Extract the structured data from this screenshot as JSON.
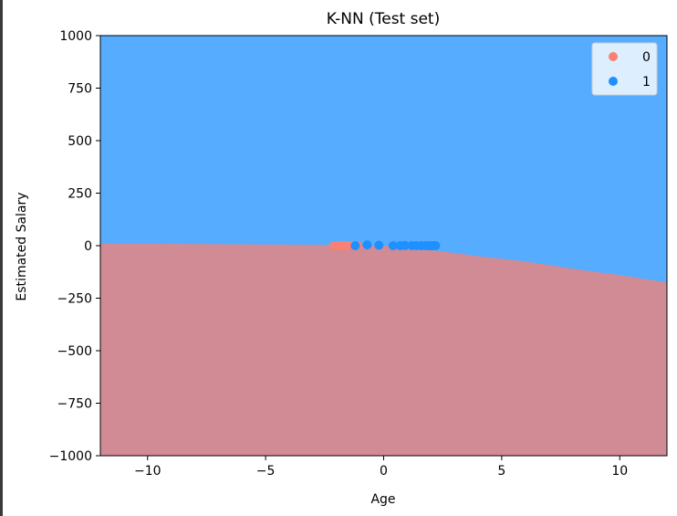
{
  "chart_data": {
    "type": "scatter",
    "title": "K-NN (Test set)",
    "xlabel": "Age",
    "ylabel": "Estimated Salary",
    "xlim": [
      -12,
      12
    ],
    "ylim": [
      -1000,
      1000
    ],
    "x_ticks": [
      -10,
      -5,
      0,
      5,
      10
    ],
    "x_tick_labels": [
      "−10",
      "−5",
      "0",
      "5",
      "10"
    ],
    "y_ticks": [
      1000,
      750,
      500,
      250,
      0,
      -250,
      -500,
      -750,
      -1000
    ],
    "y_tick_labels": [
      "1000",
      "750",
      "500",
      "250",
      "0",
      "−250",
      "−500",
      "−750",
      "−1000"
    ],
    "grid": false,
    "legend_position": "top-right",
    "decision_regions": {
      "class_0_color": "#FA8072",
      "class_1_color": "#1E90FF",
      "boundary": [
        [
          -12,
          10
        ],
        [
          -8,
          8
        ],
        [
          -4,
          5
        ],
        [
          -1,
          3
        ],
        [
          1,
          -5
        ],
        [
          2,
          -20
        ],
        [
          4,
          -50
        ],
        [
          6,
          -75
        ],
        [
          8,
          -110
        ],
        [
          10,
          -140
        ],
        [
          12,
          -175
        ]
      ]
    },
    "series": [
      {
        "name": "0",
        "color": "#FA8072",
        "x": [
          -2.1,
          -1.95,
          -1.8,
          -1.7,
          -1.6,
          -1.5,
          -1.4,
          -1.3,
          -1.25,
          -1.1
        ],
        "y": [
          0,
          0,
          0,
          0,
          0,
          0,
          0,
          0,
          0,
          0
        ]
      },
      {
        "name": "1",
        "color": "#1E90FF",
        "x": [
          -1.2,
          -0.7,
          -0.2,
          0.4,
          0.7,
          0.9,
          1.2,
          1.4,
          1.6,
          1.8,
          1.9,
          2.0,
          2.1,
          2.2
        ],
        "y": [
          0,
          4,
          2,
          0,
          0,
          1,
          0,
          0,
          0,
          0,
          0,
          0,
          0,
          0
        ]
      }
    ]
  }
}
